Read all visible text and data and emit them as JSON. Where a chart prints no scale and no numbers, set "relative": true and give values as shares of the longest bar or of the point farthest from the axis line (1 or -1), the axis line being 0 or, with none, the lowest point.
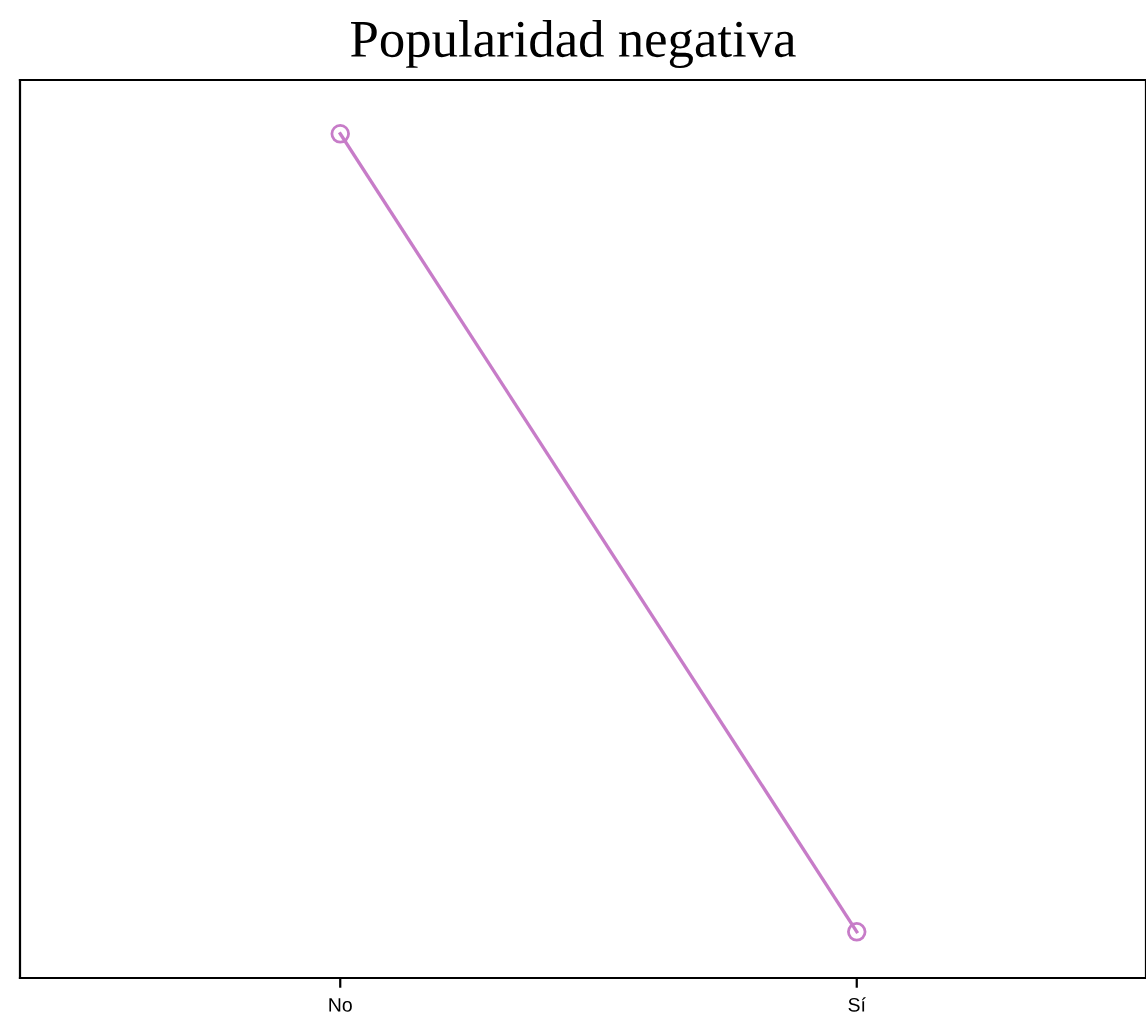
{
  "chart_data": {
    "type": "line",
    "title": "Popularidad negativa",
    "categories": [
      "No",
      "Sí"
    ],
    "relative": true,
    "series": [
      {
        "color": "#c77cc8",
        "values": [
          1,
          0.05
        ]
      }
    ],
    "marker": "circle",
    "line_style": "solid",
    "grid": false,
    "legend": false,
    "tick_labels": "x"
  }
}
